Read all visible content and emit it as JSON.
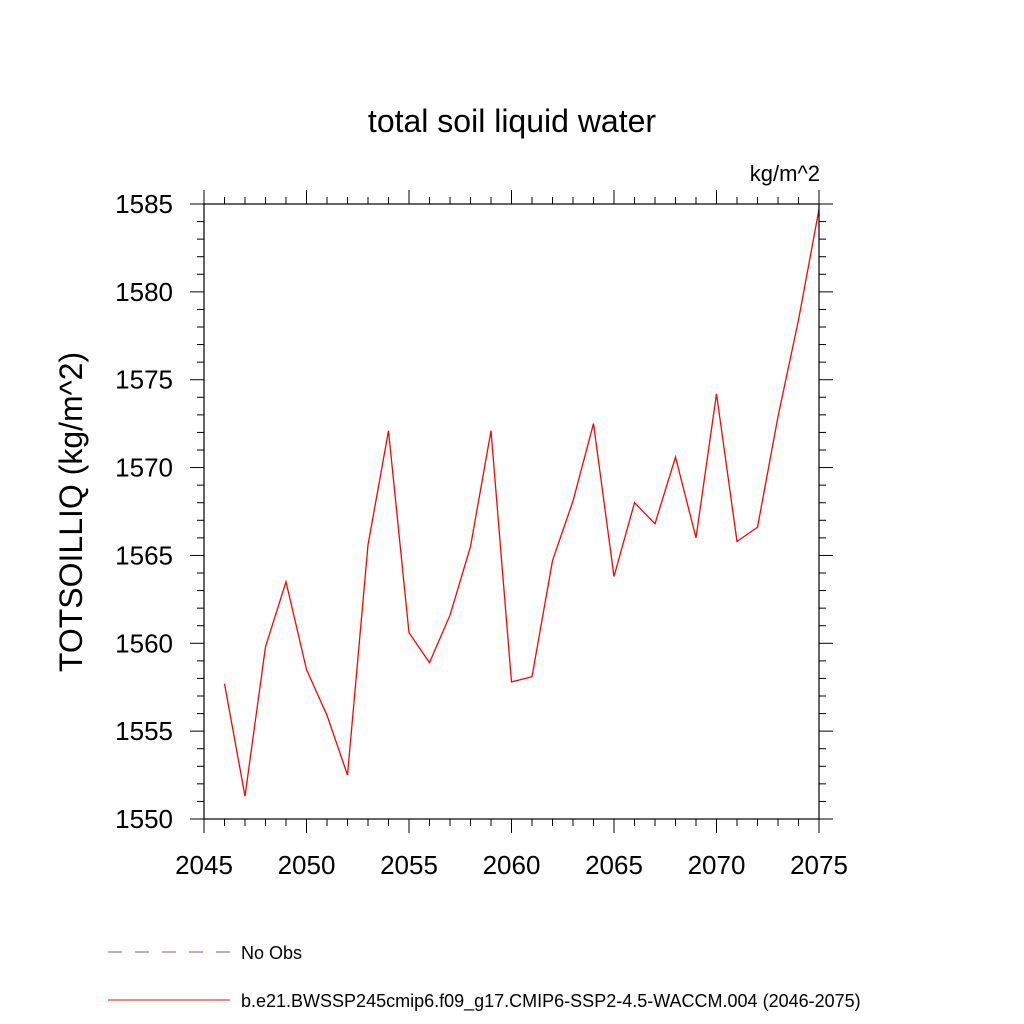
{
  "chart_data": {
    "type": "line",
    "title": "total soil liquid water",
    "units_label": "kg/m^2",
    "ylabel": "TOTSOILLIQ  (kg/m^2)",
    "xlabel": "",
    "xlim": [
      2045,
      2075
    ],
    "ylim": [
      1550,
      1585
    ],
    "x_ticks": [
      2045,
      2050,
      2055,
      2060,
      2065,
      2070,
      2075
    ],
    "y_ticks": [
      1550,
      1555,
      1560,
      1565,
      1570,
      1575,
      1580,
      1585
    ],
    "grid": false,
    "legend_position": "bottom",
    "series": [
      {
        "name": "b.e21.BWSSP245cmip6.f09_g17.CMIP6-SSP2-4.5-WACCM.004 (2046-2075)",
        "color": "#ff0000",
        "style": "solid",
        "x": [
          2046,
          2047,
          2048,
          2049,
          2050,
          2051,
          2052,
          2053,
          2054,
          2055,
          2056,
          2057,
          2058,
          2059,
          2060,
          2061,
          2062,
          2063,
          2064,
          2065,
          2066,
          2067,
          2068,
          2069,
          2070,
          2071,
          2072,
          2073,
          2074,
          2075
        ],
        "y": [
          1557.7,
          1551.3,
          1559.8,
          1563.5,
          1558.5,
          1555.9,
          1552.5,
          1565.6,
          1572.1,
          1560.6,
          1558.9,
          1561.6,
          1565.5,
          1572.1,
          1557.8,
          1558.1,
          1564.7,
          1568.1,
          1572.5,
          1563.8,
          1568.0,
          1566.8,
          1570.6,
          1566.0,
          1574.2,
          1565.8,
          1566.6,
          1572.9,
          1578.4,
          1584.7
        ]
      }
    ],
    "legend": [
      {
        "label": "No Obs",
        "color": "#6a5acd",
        "style": "dashed"
      },
      {
        "label": "b.e21.BWSSP245cmip6.f09_g17.CMIP6-SSP2-4.5-WACCM.004 (2046-2075)",
        "color": "#ff0000",
        "style": "solid"
      }
    ]
  }
}
